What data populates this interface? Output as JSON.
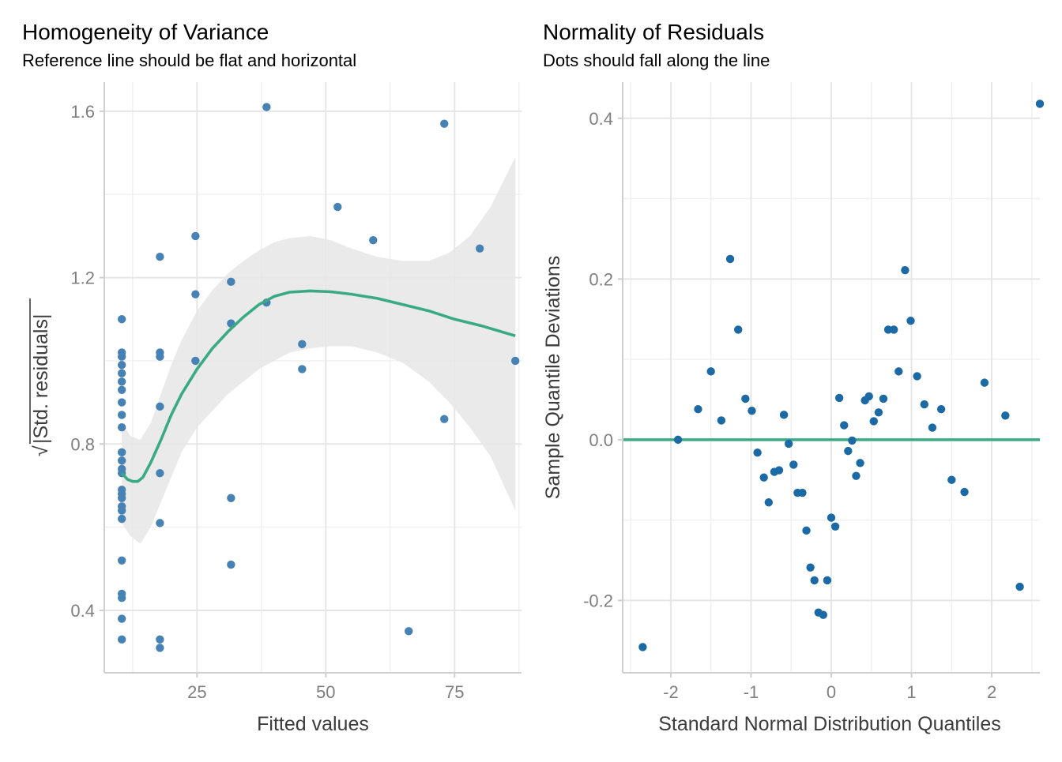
{
  "chart_data": [
    {
      "type": "scatter",
      "title": "Homogeneity of Variance",
      "subtitle": "Reference line should be flat and horizontal",
      "xlabel": "Fitted values",
      "ylabel": "√|Std. residuals|",
      "ylabel_radicand": "|Std. residuals|",
      "xlim": [
        7,
        88
      ],
      "ylim": [
        0.25,
        1.67
      ],
      "x_ticks": [
        25,
        50,
        75
      ],
      "x_tick_labels": [
        "25",
        "50",
        "75"
      ],
      "y_ticks": [
        0.4,
        0.8,
        1.2,
        1.6
      ],
      "y_tick_labels": [
        "0.4",
        "0.8",
        "1.2",
        "1.6"
      ],
      "grid": true,
      "point_color": "#4682b4",
      "smooth_color": "#3aaa85",
      "band_color": "#e6e6e6",
      "points": [
        {
          "x": 10.4,
          "y": 1.1
        },
        {
          "x": 10.4,
          "y": 1.02
        },
        {
          "x": 10.4,
          "y": 1.01
        },
        {
          "x": 10.4,
          "y": 0.99
        },
        {
          "x": 10.4,
          "y": 0.97
        },
        {
          "x": 10.4,
          "y": 0.95
        },
        {
          "x": 10.4,
          "y": 0.93
        },
        {
          "x": 10.4,
          "y": 0.9
        },
        {
          "x": 10.4,
          "y": 0.87
        },
        {
          "x": 10.4,
          "y": 0.84
        },
        {
          "x": 10.4,
          "y": 0.78
        },
        {
          "x": 10.4,
          "y": 0.76
        },
        {
          "x": 10.4,
          "y": 0.74
        },
        {
          "x": 10.4,
          "y": 0.73
        },
        {
          "x": 10.4,
          "y": 0.69
        },
        {
          "x": 10.4,
          "y": 0.68
        },
        {
          "x": 10.4,
          "y": 0.67
        },
        {
          "x": 10.4,
          "y": 0.65
        },
        {
          "x": 10.4,
          "y": 0.64
        },
        {
          "x": 10.4,
          "y": 0.62
        },
        {
          "x": 10.4,
          "y": 0.52
        },
        {
          "x": 10.4,
          "y": 0.44
        },
        {
          "x": 10.4,
          "y": 0.43
        },
        {
          "x": 10.4,
          "y": 0.38
        },
        {
          "x": 10.4,
          "y": 0.33
        },
        {
          "x": 17.8,
          "y": 1.25
        },
        {
          "x": 17.8,
          "y": 1.02
        },
        {
          "x": 17.8,
          "y": 1.01
        },
        {
          "x": 17.8,
          "y": 0.89
        },
        {
          "x": 17.8,
          "y": 0.73
        },
        {
          "x": 17.8,
          "y": 0.61
        },
        {
          "x": 17.8,
          "y": 0.33
        },
        {
          "x": 17.8,
          "y": 0.31
        },
        {
          "x": 24.7,
          "y": 1.3
        },
        {
          "x": 24.7,
          "y": 1.16
        },
        {
          "x": 24.7,
          "y": 1.0
        },
        {
          "x": 31.6,
          "y": 1.19
        },
        {
          "x": 31.6,
          "y": 1.09
        },
        {
          "x": 31.6,
          "y": 0.67
        },
        {
          "x": 31.6,
          "y": 0.51
        },
        {
          "x": 38.5,
          "y": 1.61
        },
        {
          "x": 38.5,
          "y": 1.14
        },
        {
          "x": 45.4,
          "y": 1.04
        },
        {
          "x": 45.4,
          "y": 0.98
        },
        {
          "x": 52.3,
          "y": 1.37
        },
        {
          "x": 59.2,
          "y": 1.29
        },
        {
          "x": 66.1,
          "y": 0.35
        },
        {
          "x": 73.0,
          "y": 1.57
        },
        {
          "x": 73.0,
          "y": 0.86
        },
        {
          "x": 79.9,
          "y": 1.27
        },
        {
          "x": 86.8,
          "y": 1.0
        }
      ],
      "smooth_line": [
        {
          "x": 10.4,
          "y": 0.73
        },
        {
          "x": 11.5,
          "y": 0.715
        },
        {
          "x": 12.5,
          "y": 0.71
        },
        {
          "x": 13.5,
          "y": 0.71
        },
        {
          "x": 14.5,
          "y": 0.72
        },
        {
          "x": 16,
          "y": 0.755
        },
        {
          "x": 18,
          "y": 0.81
        },
        {
          "x": 20,
          "y": 0.87
        },
        {
          "x": 22,
          "y": 0.92
        },
        {
          "x": 25,
          "y": 0.98
        },
        {
          "x": 28,
          "y": 1.03
        },
        {
          "x": 31,
          "y": 1.07
        },
        {
          "x": 34,
          "y": 1.105
        },
        {
          "x": 37,
          "y": 1.135
        },
        {
          "x": 40,
          "y": 1.155
        },
        {
          "x": 43,
          "y": 1.165
        },
        {
          "x": 47,
          "y": 1.168
        },
        {
          "x": 51,
          "y": 1.166
        },
        {
          "x": 55,
          "y": 1.16
        },
        {
          "x": 60,
          "y": 1.15
        },
        {
          "x": 65,
          "y": 1.135
        },
        {
          "x": 70,
          "y": 1.12
        },
        {
          "x": 75,
          "y": 1.1
        },
        {
          "x": 80,
          "y": 1.085
        },
        {
          "x": 86.8,
          "y": 1.06
        }
      ],
      "band_upper": [
        {
          "x": 10.4,
          "y": 0.85
        },
        {
          "x": 12,
          "y": 0.82
        },
        {
          "x": 14,
          "y": 0.81
        },
        {
          "x": 16,
          "y": 0.85
        },
        {
          "x": 18,
          "y": 0.92
        },
        {
          "x": 20,
          "y": 0.99
        },
        {
          "x": 22,
          "y": 1.05
        },
        {
          "x": 25,
          "y": 1.12
        },
        {
          "x": 28,
          "y": 1.17
        },
        {
          "x": 31,
          "y": 1.21
        },
        {
          "x": 34,
          "y": 1.24
        },
        {
          "x": 37,
          "y": 1.265
        },
        {
          "x": 40,
          "y": 1.285
        },
        {
          "x": 43,
          "y": 1.295
        },
        {
          "x": 47,
          "y": 1.3
        },
        {
          "x": 51,
          "y": 1.29
        },
        {
          "x": 55,
          "y": 1.27
        },
        {
          "x": 60,
          "y": 1.25
        },
        {
          "x": 65,
          "y": 1.24
        },
        {
          "x": 70,
          "y": 1.24
        },
        {
          "x": 74,
          "y": 1.26
        },
        {
          "x": 78,
          "y": 1.3
        },
        {
          "x": 82,
          "y": 1.37
        },
        {
          "x": 86.8,
          "y": 1.49
        }
      ],
      "band_lower": [
        {
          "x": 10.4,
          "y": 0.61
        },
        {
          "x": 12,
          "y": 0.58
        },
        {
          "x": 14,
          "y": 0.56
        },
        {
          "x": 16,
          "y": 0.6
        },
        {
          "x": 18,
          "y": 0.66
        },
        {
          "x": 20,
          "y": 0.72
        },
        {
          "x": 22,
          "y": 0.78
        },
        {
          "x": 25,
          "y": 0.84
        },
        {
          "x": 28,
          "y": 0.88
        },
        {
          "x": 31,
          "y": 0.92
        },
        {
          "x": 34,
          "y": 0.95
        },
        {
          "x": 37,
          "y": 0.98
        },
        {
          "x": 40,
          "y": 1.0
        },
        {
          "x": 43,
          "y": 1.02
        },
        {
          "x": 47,
          "y": 1.03
        },
        {
          "x": 51,
          "y": 1.035
        },
        {
          "x": 55,
          "y": 1.035
        },
        {
          "x": 60,
          "y": 1.02
        },
        {
          "x": 65,
          "y": 0.995
        },
        {
          "x": 70,
          "y": 0.95
        },
        {
          "x": 74,
          "y": 0.9
        },
        {
          "x": 78,
          "y": 0.84
        },
        {
          "x": 82,
          "y": 0.77
        },
        {
          "x": 86.8,
          "y": 0.64
        }
      ]
    },
    {
      "type": "scatter",
      "title": "Normality of Residuals",
      "subtitle": "Dots should fall along the line",
      "xlabel": "Standard Normal Distribution Quantiles",
      "ylabel": "Sample Quantile Deviations",
      "xlim": [
        -2.6,
        2.6
      ],
      "ylim": [
        -0.29,
        0.445
      ],
      "x_ticks": [
        -2,
        -1,
        0,
        1,
        2
      ],
      "x_tick_labels": [
        "-2",
        "-1",
        "0",
        "1",
        "2"
      ],
      "y_ticks": [
        -0.2,
        0.0,
        0.2,
        0.4
      ],
      "y_tick_labels": [
        "-0.2",
        "0.0",
        "0.2",
        "0.4"
      ],
      "grid": true,
      "point_color": "#1b6aa5",
      "reference_color": "#3aaa85",
      "reference_y": 0.0,
      "points": [
        {
          "x": -2.35,
          "y": -0.258
        },
        {
          "x": -1.91,
          "y": 0.0
        },
        {
          "x": -1.66,
          "y": 0.038
        },
        {
          "x": -1.5,
          "y": 0.085
        },
        {
          "x": -1.37,
          "y": 0.024
        },
        {
          "x": -1.26,
          "y": 0.225
        },
        {
          "x": -1.16,
          "y": 0.137
        },
        {
          "x": -1.07,
          "y": 0.051
        },
        {
          "x": -0.99,
          "y": 0.036
        },
        {
          "x": -0.92,
          "y": -0.016
        },
        {
          "x": -0.84,
          "y": -0.047
        },
        {
          "x": -0.78,
          "y": -0.078
        },
        {
          "x": -0.71,
          "y": -0.04
        },
        {
          "x": -0.65,
          "y": -0.038
        },
        {
          "x": -0.59,
          "y": 0.031
        },
        {
          "x": -0.53,
          "y": -0.005
        },
        {
          "x": -0.47,
          "y": -0.031
        },
        {
          "x": -0.42,
          "y": -0.066
        },
        {
          "x": -0.36,
          "y": -0.066
        },
        {
          "x": -0.31,
          "y": -0.113
        },
        {
          "x": -0.26,
          "y": -0.159
        },
        {
          "x": -0.21,
          "y": -0.175
        },
        {
          "x": -0.16,
          "y": -0.215
        },
        {
          "x": -0.1,
          "y": -0.218
        },
        {
          "x": -0.05,
          "y": -0.175
        },
        {
          "x": 0.0,
          "y": -0.097
        },
        {
          "x": 0.05,
          "y": -0.108
        },
        {
          "x": 0.1,
          "y": 0.052
        },
        {
          "x": 0.16,
          "y": 0.018
        },
        {
          "x": 0.21,
          "y": -0.014
        },
        {
          "x": 0.26,
          "y": -0.001
        },
        {
          "x": 0.31,
          "y": -0.045
        },
        {
          "x": 0.36,
          "y": -0.029
        },
        {
          "x": 0.42,
          "y": 0.049
        },
        {
          "x": 0.47,
          "y": 0.054
        },
        {
          "x": 0.53,
          "y": 0.023
        },
        {
          "x": 0.59,
          "y": 0.034
        },
        {
          "x": 0.65,
          "y": 0.051
        },
        {
          "x": 0.71,
          "y": 0.137
        },
        {
          "x": 0.78,
          "y": 0.137
        },
        {
          "x": 0.84,
          "y": 0.085
        },
        {
          "x": 0.92,
          "y": 0.211
        },
        {
          "x": 0.99,
          "y": 0.148
        },
        {
          "x": 1.07,
          "y": 0.079
        },
        {
          "x": 1.16,
          "y": 0.044
        },
        {
          "x": 1.26,
          "y": 0.015
        },
        {
          "x": 1.37,
          "y": 0.038
        },
        {
          "x": 1.5,
          "y": -0.05
        },
        {
          "x": 1.66,
          "y": -0.065
        },
        {
          "x": 1.91,
          "y": 0.071
        },
        {
          "x": 2.17,
          "y": 0.03
        },
        {
          "x": 2.35,
          "y": -0.183
        },
        {
          "x": 2.6,
          "y": 0.418
        }
      ]
    }
  ]
}
